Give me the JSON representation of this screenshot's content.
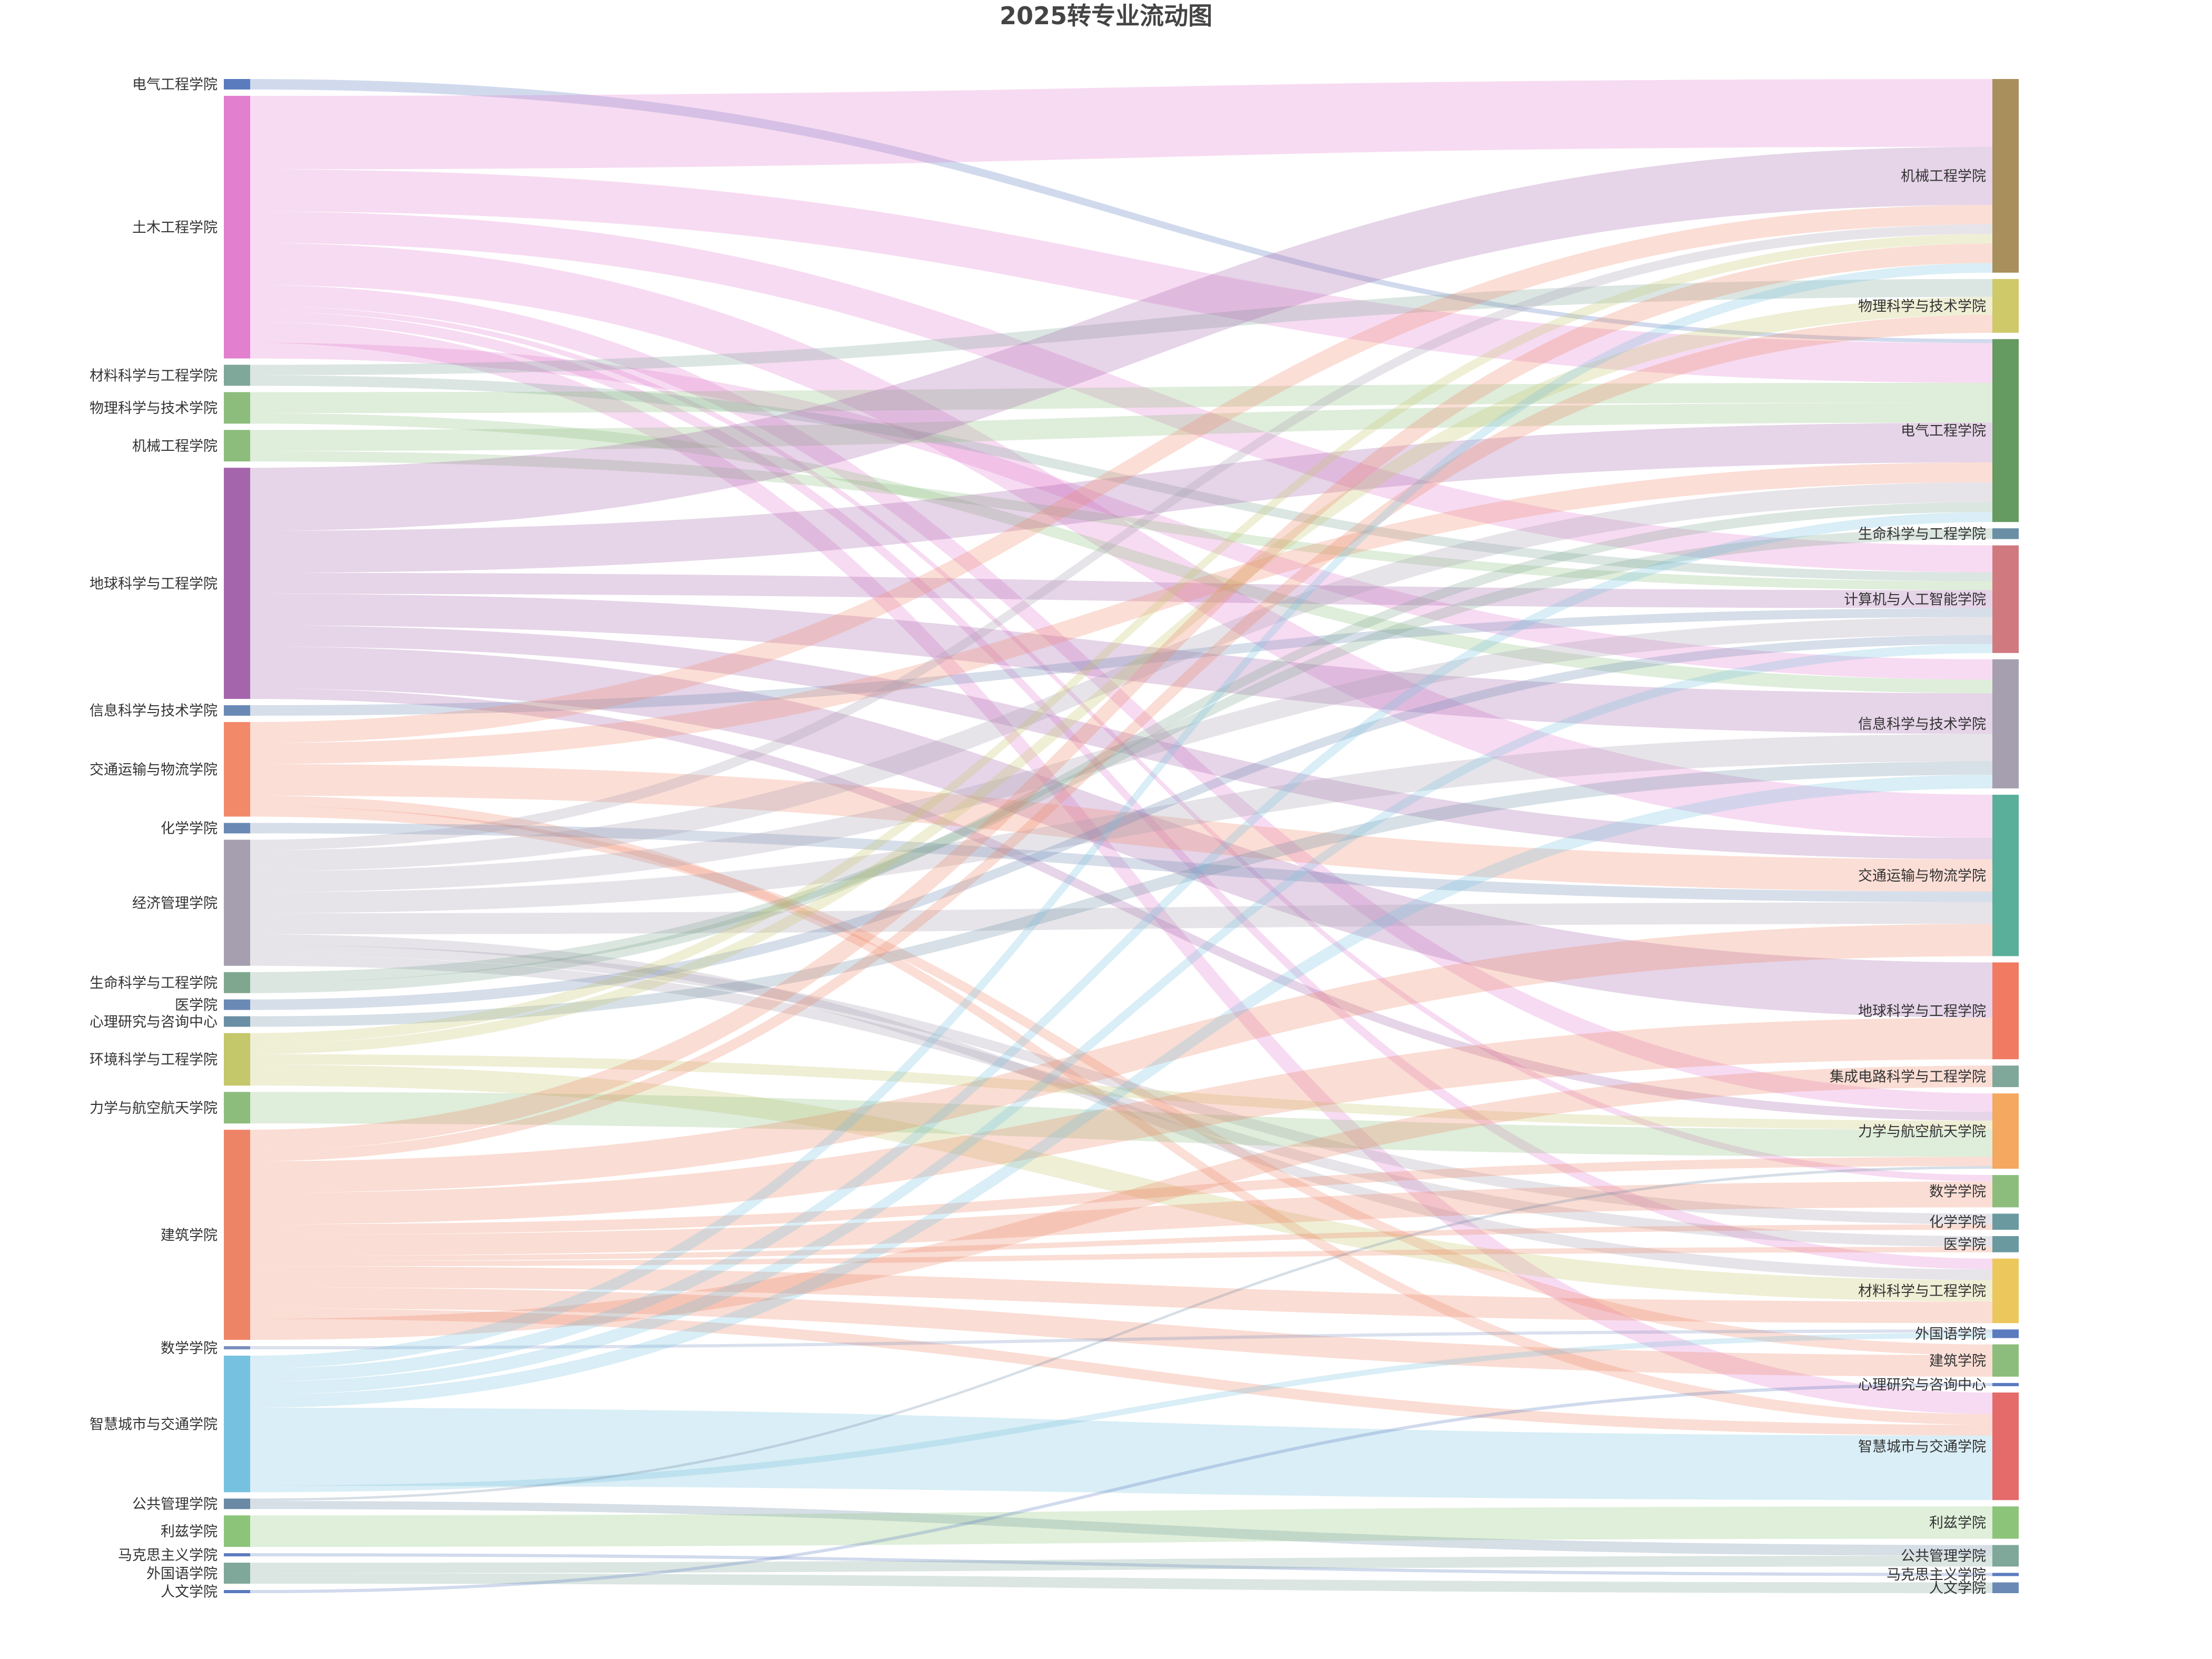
{
  "chart_data": {
    "type": "sankey",
    "title": "2025转专业流动图",
    "source_nodes": [
      {
        "name": "电气工程学院",
        "value": 1,
        "color": "#5b7bbf"
      },
      {
        "name": "土木工程学院",
        "value": 25,
        "color": "#e27fcf"
      },
      {
        "name": "材料科学与工程学院",
        "value": 2,
        "color": "#7fa79a"
      },
      {
        "name": "物理科学与技术学院",
        "value": 3,
        "color": "#8cbd7c"
      },
      {
        "name": "机械工程学院",
        "value": 3,
        "color": "#8cbd7c"
      },
      {
        "name": "地球科学与工程学院",
        "value": 22,
        "color": "#a565ad"
      },
      {
        "name": "信息科学与技术学院",
        "value": 1,
        "color": "#6a89b5"
      },
      {
        "name": "交通运输与物流学院",
        "value": 9,
        "color": "#f28a6a"
      },
      {
        "name": "化学学院",
        "value": 1,
        "color": "#6a89b5"
      },
      {
        "name": "经济管理学院",
        "value": 12,
        "color": "#a59fb0"
      },
      {
        "name": "生命科学与工程学院",
        "value": 2,
        "color": "#7fa790"
      },
      {
        "name": "医学院",
        "value": 1,
        "color": "#6a89b5"
      },
      {
        "name": "心理研究与咨询中心",
        "value": 1,
        "color": "#6a8fa5"
      },
      {
        "name": "环境科学与工程学院",
        "value": 5,
        "color": "#c4c76a"
      },
      {
        "name": "力学与航空航天学院",
        "value": 3,
        "color": "#8cbd7c"
      },
      {
        "name": "建筑学院",
        "value": 20,
        "color": "#ee8466"
      },
      {
        "name": "数学学院",
        "value": 0.3,
        "color": "#7a8fc0"
      },
      {
        "name": "智慧城市与交通学院",
        "value": 13,
        "color": "#76c1e0"
      },
      {
        "name": "公共管理学院",
        "value": 1,
        "color": "#6a89a5"
      },
      {
        "name": "利兹学院",
        "value": 3,
        "color": "#8cc47a"
      },
      {
        "name": "马克思主义学院",
        "value": 0.3,
        "color": "#5b7bbf"
      },
      {
        "name": "外国语学院",
        "value": 2,
        "color": "#7fa79a"
      },
      {
        "name": "人文学院",
        "value": 0.3,
        "color": "#5b7bbf"
      }
    ],
    "target_nodes": [
      {
        "name": "机械工程学院",
        "value": 18,
        "color": "#a88f5c"
      },
      {
        "name": "物理科学与技术学院",
        "value": 5,
        "color": "#cfc96a"
      },
      {
        "name": "电气工程学院",
        "value": 17,
        "color": "#659a60"
      },
      {
        "name": "生命科学与工程学院",
        "value": 1,
        "color": "#6a8fa5"
      },
      {
        "name": "计算机与人工智能学院",
        "value": 10,
        "color": "#d07a80"
      },
      {
        "name": "信息科学与技术学院",
        "value": 12,
        "color": "#a59fb0"
      },
      {
        "name": "交通运输与物流学院",
        "value": 15,
        "color": "#5aaf9a"
      },
      {
        "name": "地球科学与工程学院",
        "value": 9,
        "color": "#f07a62"
      },
      {
        "name": "集成电路科学与工程学院",
        "value": 2,
        "color": "#7fa79a"
      },
      {
        "name": "力学与航空航天学院",
        "value": 7,
        "color": "#f4a860"
      },
      {
        "name": "数学学院",
        "value": 3,
        "color": "#8cbd7c"
      },
      {
        "name": "化学学院",
        "value": 1.5,
        "color": "#6a99a0"
      },
      {
        "name": "医学院",
        "value": 1.5,
        "color": "#6a99a0"
      },
      {
        "name": "材料科学与工程学院",
        "value": 6,
        "color": "#ecc75c"
      },
      {
        "name": "外国语学院",
        "value": 0.8,
        "color": "#5b7bbf"
      },
      {
        "name": "建筑学院",
        "value": 3,
        "color": "#8cbd7c"
      },
      {
        "name": "心理研究与咨询中心",
        "value": 0.3,
        "color": "#5b7bbf"
      },
      {
        "name": "智慧城市与交通学院",
        "value": 10,
        "color": "#e56a6a"
      },
      {
        "name": "利兹学院",
        "value": 3,
        "color": "#8cc47a"
      },
      {
        "name": "公共管理学院",
        "value": 2,
        "color": "#7fa79a"
      },
      {
        "name": "马克思主义学院",
        "value": 0.3,
        "color": "#5b7bbf"
      },
      {
        "name": "人文学院",
        "value": 1,
        "color": "#6a89b5"
      }
    ],
    "links": [
      {
        "source": "电气工程学院",
        "target": "电气工程学院",
        "value": 0.4
      },
      {
        "source": "土木工程学院",
        "target": "机械工程学院",
        "value": 7
      },
      {
        "source": "土木工程学院",
        "target": "电气工程学院",
        "value": 4
      },
      {
        "source": "土木工程学院",
        "target": "计算机与人工智能学院",
        "value": 3
      },
      {
        "source": "土木工程学院",
        "target": "交通运输与物流学院",
        "value": 4
      },
      {
        "source": "土木工程学院",
        "target": "力学与航空航天学院",
        "value": 2
      },
      {
        "source": "土木工程学院",
        "target": "数学学院",
        "value": 0.5
      },
      {
        "source": "土木工程学院",
        "target": "材料科学与工程学院",
        "value": 1
      },
      {
        "source": "土木工程学院",
        "target": "智慧城市与交通学院",
        "value": 2
      },
      {
        "source": "土木工程学院",
        "target": "信息科学与技术学院",
        "value": 1.5
      },
      {
        "source": "材料科学与工程学院",
        "target": "物理科学与技术学院",
        "value": 1
      },
      {
        "source": "材料科学与工程学院",
        "target": "计算机与人工智能学院",
        "value": 1
      },
      {
        "source": "物理科学与技术学院",
        "target": "电气工程学院",
        "value": 2
      },
      {
        "source": "物理科学与技术学院",
        "target": "信息科学与技术学院",
        "value": 1
      },
      {
        "source": "机械工程学院",
        "target": "电气工程学院",
        "value": 2
      },
      {
        "source": "机械工程学院",
        "target": "计算机与人工智能学院",
        "value": 1
      },
      {
        "source": "地球科学与工程学院",
        "target": "机械工程学院",
        "value": 6
      },
      {
        "source": "地球科学与工程学院",
        "target": "电气工程学院",
        "value": 4
      },
      {
        "source": "地球科学与工程学院",
        "target": "计算机与人工智能学院",
        "value": 2
      },
      {
        "source": "地球科学与工程学院",
        "target": "信息科学与技术学院",
        "value": 3
      },
      {
        "source": "地球科学与工程学院",
        "target": "交通运输与物流学院",
        "value": 2
      },
      {
        "source": "地球科学与工程学院",
        "target": "地球科学与工程学院",
        "value": 4
      },
      {
        "source": "地球科学与工程学院",
        "target": "力学与航空航天学院",
        "value": 1
      },
      {
        "source": "信息科学与技术学院",
        "target": "计算机与人工智能学院",
        "value": 1
      },
      {
        "source": "交通运输与物流学院",
        "target": "机械工程学院",
        "value": 2
      },
      {
        "source": "交通运输与物流学院",
        "target": "电气工程学院",
        "value": 2
      },
      {
        "source": "交通运输与物流学院",
        "target": "交通运输与物流学院",
        "value": 3
      },
      {
        "source": "交通运输与物流学院",
        "target": "智慧城市与交通学院",
        "value": 1
      },
      {
        "source": "交通运输与物流学院",
        "target": "建筑学院",
        "value": 1
      },
      {
        "source": "化学学院",
        "target": "交通运输与物流学院",
        "value": 1
      },
      {
        "source": "经济管理学院",
        "target": "机械工程学院",
        "value": 1
      },
      {
        "source": "经济管理学院",
        "target": "电气工程学院",
        "value": 2
      },
      {
        "source": "经济管理学院",
        "target": "计算机与人工智能学院",
        "value": 2
      },
      {
        "source": "经济管理学院",
        "target": "信息科学与技术学院",
        "value": 2
      },
      {
        "source": "经济管理学院",
        "target": "交通运输与物流学院",
        "value": 2
      },
      {
        "source": "经济管理学院",
        "target": "材料科学与工程学院",
        "value": 1
      },
      {
        "source": "经济管理学院",
        "target": "化学学院",
        "value": 1
      },
      {
        "source": "经济管理学院",
        "target": "医学院",
        "value": 1
      },
      {
        "source": "生命科学与工程学院",
        "target": "生命科学与工程学院",
        "value": 1
      },
      {
        "source": "生命科学与工程学院",
        "target": "电气工程学院",
        "value": 1
      },
      {
        "source": "医学院",
        "target": "计算机与人工智能学院",
        "value": 1
      },
      {
        "source": "心理研究与咨询中心",
        "target": "信息科学与技术学院",
        "value": 1
      },
      {
        "source": "环境科学与工程学院",
        "target": "机械工程学院",
        "value": 1
      },
      {
        "source": "环境科学与工程学院",
        "target": "物理科学与技术学院",
        "value": 1
      },
      {
        "source": "环境科学与工程学院",
        "target": "力学与航空航天学院",
        "value": 1
      },
      {
        "source": "环境科学与工程学院",
        "target": "材料科学与工程学院",
        "value": 2
      },
      {
        "source": "力学与航空航天学院",
        "target": "力学与航空航天学院",
        "value": 3
      },
      {
        "source": "建筑学院",
        "target": "机械工程学院",
        "value": 2
      },
      {
        "source": "建筑学院",
        "target": "物理科学与技术学院",
        "value": 1
      },
      {
        "source": "建筑学院",
        "target": "交通运输与物流学院",
        "value": 3
      },
      {
        "source": "建筑学院",
        "target": "地球科学与工程学院",
        "value": 3
      },
      {
        "source": "建筑学院",
        "target": "力学与航空航天学院",
        "value": 1
      },
      {
        "source": "建筑学院",
        "target": "数学学院",
        "value": 2
      },
      {
        "source": "建筑学院",
        "target": "化学学院",
        "value": 0.5
      },
      {
        "source": "建筑学院",
        "target": "医学院",
        "value": 0.5
      },
      {
        "source": "建筑学院",
        "target": "材料科学与工程学院",
        "value": 2
      },
      {
        "source": "建筑学院",
        "target": "建筑学院",
        "value": 2
      },
      {
        "source": "建筑学院",
        "target": "智慧城市与交通学院",
        "value": 1
      },
      {
        "source": "建筑学院",
        "target": "集成电路科学与工程学院",
        "value": 2
      },
      {
        "source": "数学学院",
        "target": "外国语学院",
        "value": 0.3
      },
      {
        "source": "智慧城市与交通学院",
        "target": "机械工程学院",
        "value": 1
      },
      {
        "source": "智慧城市与交通学院",
        "target": "电气工程学院",
        "value": 1
      },
      {
        "source": "智慧城市与交通学院",
        "target": "计算机与人工智能学院",
        "value": 1
      },
      {
        "source": "智慧城市与交通学院",
        "target": "信息科学与技术学院",
        "value": 1
      },
      {
        "source": "智慧城市与交通学院",
        "target": "智慧城市与交通学院",
        "value": 6
      },
      {
        "source": "智慧城市与交通学院",
        "target": "外国语学院",
        "value": 0.5
      },
      {
        "source": "公共管理学院",
        "target": "力学与航空航天学院",
        "value": 0.3
      },
      {
        "source": "公共管理学院",
        "target": "公共管理学院",
        "value": 1
      },
      {
        "source": "利兹学院",
        "target": "利兹学院",
        "value": 3
      },
      {
        "source": "马克思主义学院",
        "target": "马克思主义学院",
        "value": 0.3
      },
      {
        "source": "外国语学院",
        "target": "公共管理学院",
        "value": 1
      },
      {
        "source": "外国语学院",
        "target": "人文学院",
        "value": 1
      },
      {
        "source": "人文学院",
        "target": "心理研究与咨询中心",
        "value": 0.3
      }
    ]
  }
}
